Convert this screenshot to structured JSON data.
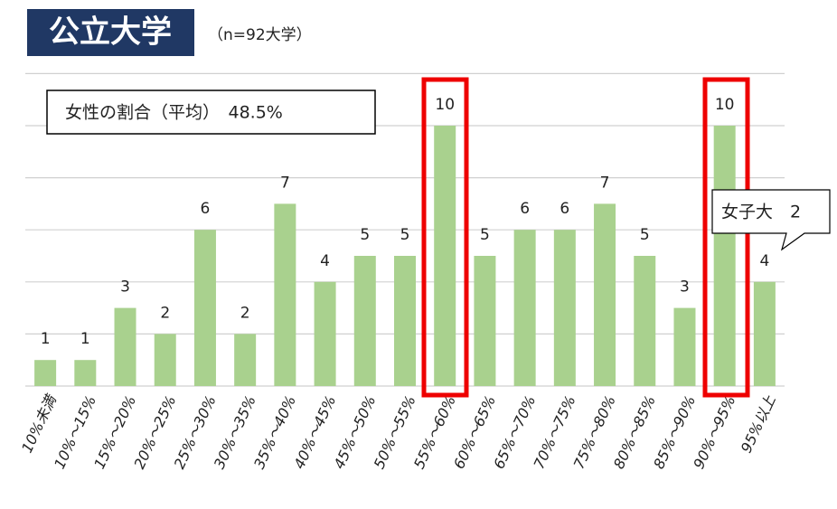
{
  "chart_data": {
    "type": "bar",
    "title": "公立大学",
    "subtitle": "（n=92大学）",
    "annotations": [
      "女性の割合（平均）　48.5%",
      "女子大　2"
    ],
    "categories": [
      "10%未満",
      "10%～15%",
      "15%～20%",
      "20%～25%",
      "25%～30%",
      "30%～35%",
      "35%～40%",
      "40%～45%",
      "45%～50%",
      "50%～55%",
      "55%～60%",
      "60%～65%",
      "65%～70%",
      "70%～75%",
      "75%～80%",
      "80%～85%",
      "85%～90%",
      "90%～95%",
      "95%以上"
    ],
    "values": [
      1,
      1,
      3,
      2,
      6,
      2,
      7,
      4,
      5,
      5,
      10,
      5,
      6,
      6,
      7,
      5,
      3,
      10,
      4
    ],
    "color": "#a9d18e",
    "ylim": [
      0,
      12
    ],
    "yticks": [
      0,
      2,
      4,
      6,
      8,
      10,
      12
    ],
    "grid": true
  }
}
